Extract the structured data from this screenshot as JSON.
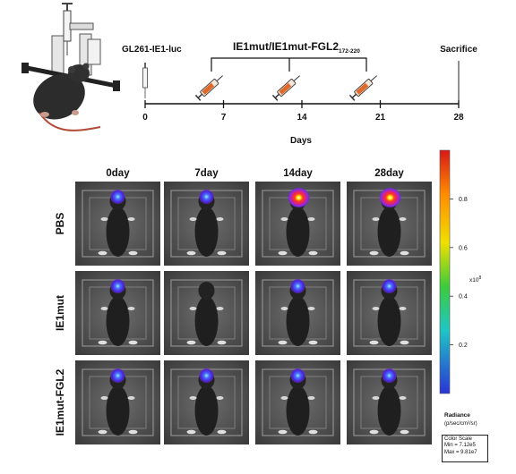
{
  "timeline": {
    "tumor_label": "GL261-IE1-luc",
    "treatment_label": "IE1mut/IE1mut-FGL2",
    "treatment_subscript": "172-220",
    "end_label": "Sacrifice",
    "ticks": [
      "0",
      "7",
      "14",
      "21",
      "28"
    ],
    "axis_label": "Days"
  },
  "columns": [
    "0day",
    "7day",
    "14day",
    "28day"
  ],
  "rows": [
    "PBS",
    "IE1mut",
    "IE1mut-FGL2"
  ],
  "signal": [
    [
      "low",
      "low",
      "high",
      "high"
    ],
    [
      "low",
      "none",
      "low",
      "low"
    ],
    [
      "low",
      "low",
      "low",
      "low"
    ]
  ],
  "colorbar": {
    "ticks": [
      "0.8",
      "0.6",
      "0.4",
      "0.2"
    ],
    "tick_values": [
      0.8,
      0.6,
      0.4,
      0.2
    ],
    "unit": "x10",
    "unit_exp": "8",
    "radiance_label": "Radiance",
    "radiance_units": "(p/sec/cm²/sr)",
    "colors": [
      "#d81818",
      "#ff8c00",
      "#f0e000",
      "#3ccb3c",
      "#1fc6c6",
      "#2a33d6"
    ]
  },
  "color_scale": {
    "title": "Color Scale",
    "min": "Min = 7.12e5",
    "max": "Max = 9.81e7"
  }
}
